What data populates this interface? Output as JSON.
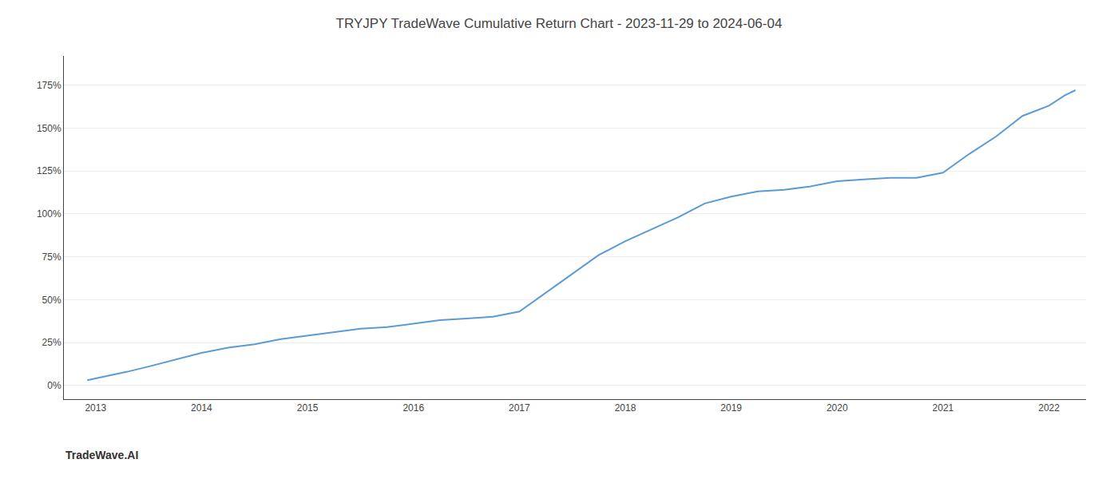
{
  "chart_data": {
    "type": "line",
    "title": "TRYJPY TradeWave Cumulative Return Chart - 2023-11-29 to 2024-06-04",
    "annotations": [
      "TradeWave.AI"
    ],
    "color": "#5b9bd5",
    "grid": "y",
    "x": [
      2012.92,
      2013.0,
      2013.15,
      2013.3,
      2013.5,
      2013.75,
      2014.0,
      2014.25,
      2014.5,
      2014.75,
      2015.0,
      2015.25,
      2015.5,
      2015.75,
      2016.0,
      2016.25,
      2016.5,
      2016.75,
      2017.0,
      2017.25,
      2017.5,
      2017.75,
      2018.0,
      2018.25,
      2018.5,
      2018.75,
      2019.0,
      2019.25,
      2019.5,
      2019.75,
      2020.0,
      2020.25,
      2020.5,
      2020.75,
      2021.0,
      2021.25,
      2021.5,
      2021.75,
      2022.0,
      2022.15,
      2022.25
    ],
    "values": [
      3,
      4,
      6,
      8,
      11,
      15,
      19,
      22,
      24,
      27,
      29,
      31,
      33,
      34,
      36,
      38,
      39,
      40,
      43,
      54,
      65,
      76,
      84,
      91,
      98,
      106,
      110,
      113,
      114,
      116,
      119,
      120,
      121,
      121,
      124,
      135,
      145,
      157,
      163,
      169,
      172
    ],
    "xlim": [
      2012.7,
      2022.35
    ],
    "xticks": [
      2013,
      2014,
      2015,
      2016,
      2017,
      2018,
      2019,
      2020,
      2021,
      2022
    ],
    "ylim": [
      -8,
      192
    ],
    "yticks": [
      {
        "value": 0,
        "label": "0%"
      },
      {
        "value": 25,
        "label": "25%"
      },
      {
        "value": 50,
        "label": "50%"
      },
      {
        "value": 75,
        "label": "75%"
      },
      {
        "value": 100,
        "label": "100%"
      },
      {
        "value": 125,
        "label": "125%"
      },
      {
        "value": 150,
        "label": "150%"
      },
      {
        "value": 175,
        "label": "175%"
      }
    ]
  }
}
